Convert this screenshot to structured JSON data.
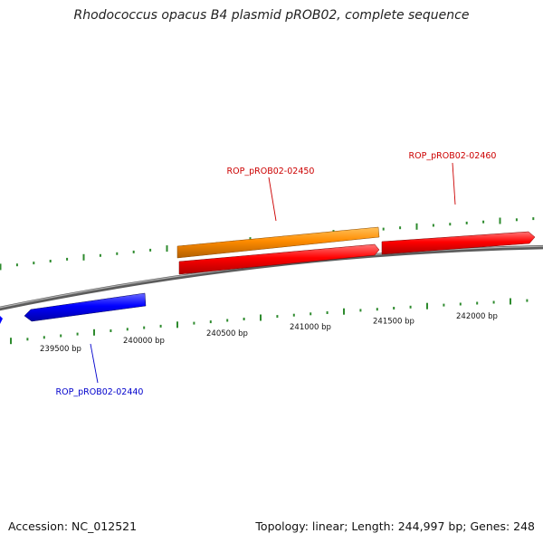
{
  "title": "Rhodococcus opacus B4 plasmid pROB02, complete sequence",
  "footer": {
    "accession_label": "Accession: NC_012521",
    "summary_label": "Topology: linear; Length: 244,997 bp; Genes: 248"
  },
  "colors": {
    "backbone": "#808080",
    "tick": "#2e8b2e",
    "gene_red": "#ff0000",
    "gene_orange": "#ff8c00",
    "gene_blue": "#0000ff",
    "label_red": "#cc0000",
    "label_blue": "#0000cc"
  },
  "scale_labels": [
    {
      "label": "239500 bp",
      "bp": 239500
    },
    {
      "label": "240000 bp",
      "bp": 240000
    },
    {
      "label": "240500 bp",
      "bp": 240500
    },
    {
      "label": "241000 bp",
      "bp": 241000
    },
    {
      "label": "241500 bp",
      "bp": 241500
    },
    {
      "label": "242000 bp",
      "bp": 242000
    }
  ],
  "genes": [
    {
      "id": "ROP_pROB02-02440",
      "labeled": true,
      "color": "blue",
      "strand": "-"
    },
    {
      "id": "",
      "labeled": false,
      "color": "red",
      "strand": "+"
    },
    {
      "id": "ROP_pROB02-02450",
      "labeled": true,
      "color": "orange",
      "strand": "+"
    },
    {
      "id": "ROP_pROB02-02460",
      "labeled": true,
      "color": "red",
      "strand": "+"
    }
  ]
}
